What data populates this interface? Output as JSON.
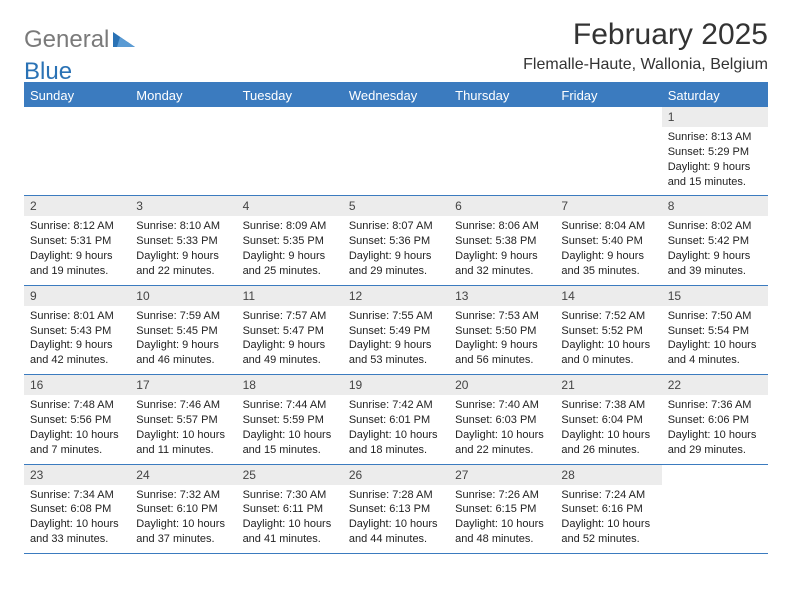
{
  "brand": {
    "word1": "General",
    "word2": "Blue"
  },
  "title": "February 2025",
  "location": "Flemalle-Haute, Wallonia, Belgium",
  "colors": {
    "header_bg": "#3b7bbf",
    "header_text": "#ffffff",
    "daynum_bg": "#ececec",
    "brand_gray": "#7a7a7a",
    "brand_blue": "#2a72b5"
  },
  "weekdays": [
    "Sunday",
    "Monday",
    "Tuesday",
    "Wednesday",
    "Thursday",
    "Friday",
    "Saturday"
  ],
  "first_weekday_index": 6,
  "days": [
    {
      "n": 1,
      "sunrise": "8:13 AM",
      "sunset": "5:29 PM",
      "daylight": "9 hours and 15 minutes."
    },
    {
      "n": 2,
      "sunrise": "8:12 AM",
      "sunset": "5:31 PM",
      "daylight": "9 hours and 19 minutes."
    },
    {
      "n": 3,
      "sunrise": "8:10 AM",
      "sunset": "5:33 PM",
      "daylight": "9 hours and 22 minutes."
    },
    {
      "n": 4,
      "sunrise": "8:09 AM",
      "sunset": "5:35 PM",
      "daylight": "9 hours and 25 minutes."
    },
    {
      "n": 5,
      "sunrise": "8:07 AM",
      "sunset": "5:36 PM",
      "daylight": "9 hours and 29 minutes."
    },
    {
      "n": 6,
      "sunrise": "8:06 AM",
      "sunset": "5:38 PM",
      "daylight": "9 hours and 32 minutes."
    },
    {
      "n": 7,
      "sunrise": "8:04 AM",
      "sunset": "5:40 PM",
      "daylight": "9 hours and 35 minutes."
    },
    {
      "n": 8,
      "sunrise": "8:02 AM",
      "sunset": "5:42 PM",
      "daylight": "9 hours and 39 minutes."
    },
    {
      "n": 9,
      "sunrise": "8:01 AM",
      "sunset": "5:43 PM",
      "daylight": "9 hours and 42 minutes."
    },
    {
      "n": 10,
      "sunrise": "7:59 AM",
      "sunset": "5:45 PM",
      "daylight": "9 hours and 46 minutes."
    },
    {
      "n": 11,
      "sunrise": "7:57 AM",
      "sunset": "5:47 PM",
      "daylight": "9 hours and 49 minutes."
    },
    {
      "n": 12,
      "sunrise": "7:55 AM",
      "sunset": "5:49 PM",
      "daylight": "9 hours and 53 minutes."
    },
    {
      "n": 13,
      "sunrise": "7:53 AM",
      "sunset": "5:50 PM",
      "daylight": "9 hours and 56 minutes."
    },
    {
      "n": 14,
      "sunrise": "7:52 AM",
      "sunset": "5:52 PM",
      "daylight": "10 hours and 0 minutes."
    },
    {
      "n": 15,
      "sunrise": "7:50 AM",
      "sunset": "5:54 PM",
      "daylight": "10 hours and 4 minutes."
    },
    {
      "n": 16,
      "sunrise": "7:48 AM",
      "sunset": "5:56 PM",
      "daylight": "10 hours and 7 minutes."
    },
    {
      "n": 17,
      "sunrise": "7:46 AM",
      "sunset": "5:57 PM",
      "daylight": "10 hours and 11 minutes."
    },
    {
      "n": 18,
      "sunrise": "7:44 AM",
      "sunset": "5:59 PM",
      "daylight": "10 hours and 15 minutes."
    },
    {
      "n": 19,
      "sunrise": "7:42 AM",
      "sunset": "6:01 PM",
      "daylight": "10 hours and 18 minutes."
    },
    {
      "n": 20,
      "sunrise": "7:40 AM",
      "sunset": "6:03 PM",
      "daylight": "10 hours and 22 minutes."
    },
    {
      "n": 21,
      "sunrise": "7:38 AM",
      "sunset": "6:04 PM",
      "daylight": "10 hours and 26 minutes."
    },
    {
      "n": 22,
      "sunrise": "7:36 AM",
      "sunset": "6:06 PM",
      "daylight": "10 hours and 29 minutes."
    },
    {
      "n": 23,
      "sunrise": "7:34 AM",
      "sunset": "6:08 PM",
      "daylight": "10 hours and 33 minutes."
    },
    {
      "n": 24,
      "sunrise": "7:32 AM",
      "sunset": "6:10 PM",
      "daylight": "10 hours and 37 minutes."
    },
    {
      "n": 25,
      "sunrise": "7:30 AM",
      "sunset": "6:11 PM",
      "daylight": "10 hours and 41 minutes."
    },
    {
      "n": 26,
      "sunrise": "7:28 AM",
      "sunset": "6:13 PM",
      "daylight": "10 hours and 44 minutes."
    },
    {
      "n": 27,
      "sunrise": "7:26 AM",
      "sunset": "6:15 PM",
      "daylight": "10 hours and 48 minutes."
    },
    {
      "n": 28,
      "sunrise": "7:24 AM",
      "sunset": "6:16 PM",
      "daylight": "10 hours and 52 minutes."
    }
  ],
  "labels": {
    "sunrise": "Sunrise:",
    "sunset": "Sunset:",
    "daylight": "Daylight:"
  }
}
